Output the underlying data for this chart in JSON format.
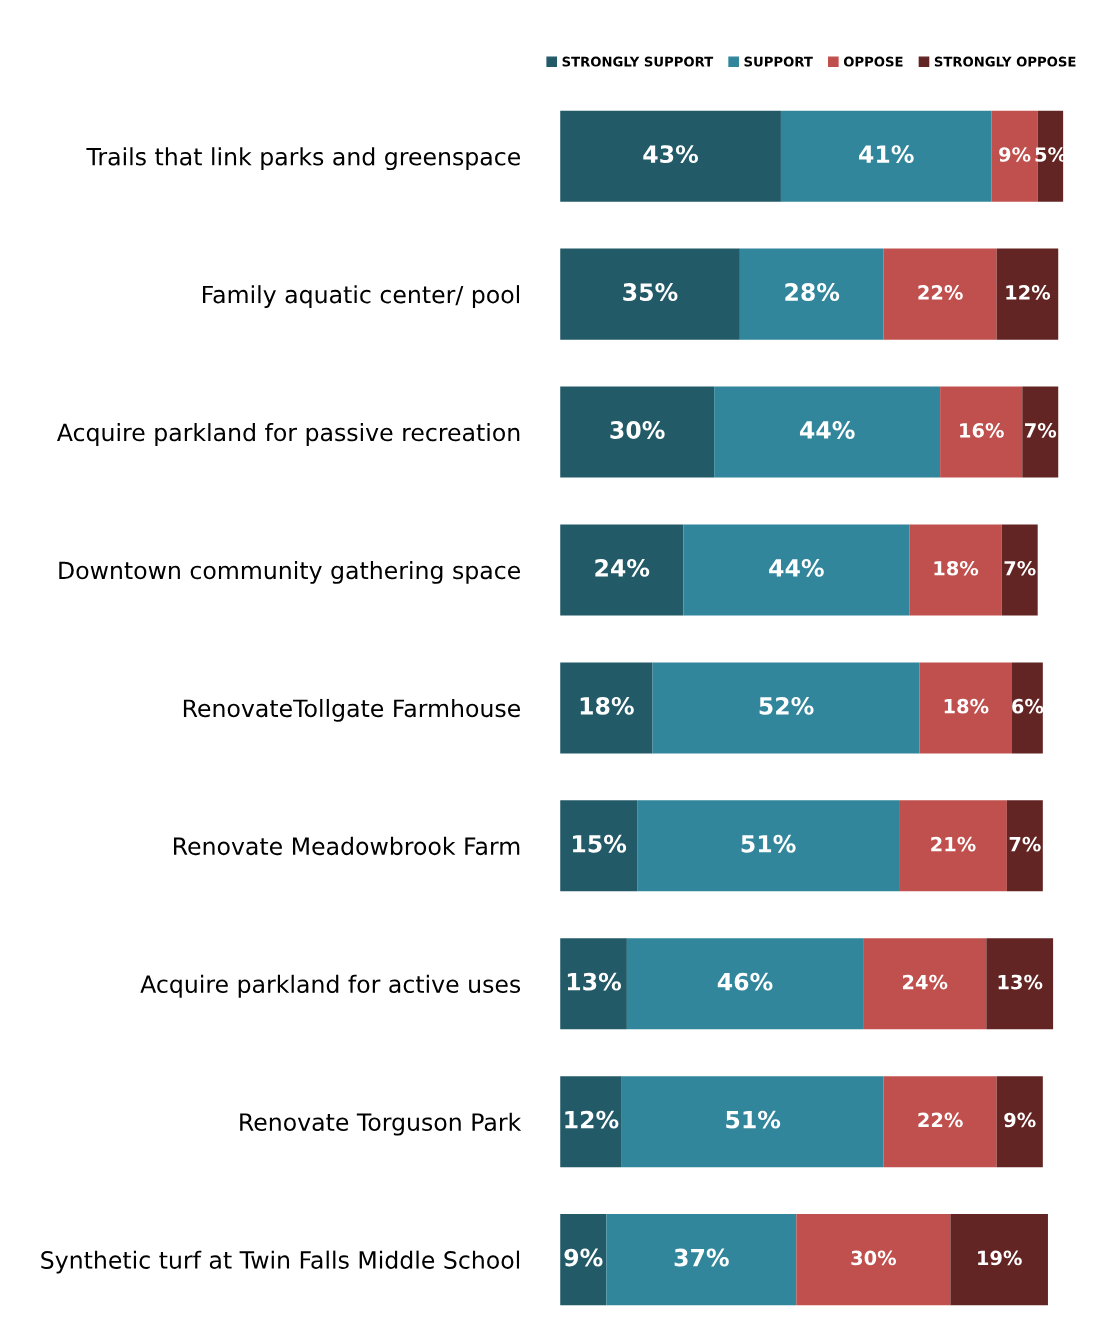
{
  "chart_data": {
    "type": "bar",
    "orientation": "horizontal",
    "stacked": true,
    "legend": "top",
    "grid": false,
    "tick_labels": "y",
    "categories": [
      "Trails that link parks and greenspace",
      "Family aquatic center/ pool",
      "Acquire parkland for passive recreation",
      "Downtown community gathering space",
      "RenovateTollgate Farmhouse",
      "Renovate Meadowbrook Farm",
      "Acquire parkland for active uses",
      "Renovate Torguson Park",
      "Synthetic turf at Twin Falls Middle School"
    ],
    "series": [
      {
        "name": "STRONGLY SUPPORT",
        "color": "#235a68",
        "values": [
          43,
          35,
          30,
          24,
          18,
          15,
          13,
          12,
          9
        ],
        "value_labels": [
          "43%",
          "35%",
          "30%",
          "24%",
          "18%",
          "15%",
          "13%",
          "12%",
          "9%"
        ]
      },
      {
        "name": "SUPPORT",
        "color": "#31869b",
        "values": [
          41,
          28,
          44,
          44,
          52,
          51,
          46,
          51,
          37
        ],
        "value_labels": [
          "41%",
          "28%",
          "44%",
          "44%",
          "52%",
          "51%",
          "46%",
          "51%",
          "37%"
        ]
      },
      {
        "name": "OPPOSE",
        "color": "#c0504d",
        "values": [
          9,
          22,
          16,
          18,
          18,
          21,
          24,
          22,
          30
        ],
        "value_labels": [
          "9%",
          "22%",
          "16%",
          "18%",
          "18%",
          "21%",
          "24%",
          "22%",
          "30%"
        ]
      },
      {
        "name": "STRONGLY OPPOSE",
        "color": "#632523",
        "values": [
          5,
          12,
          7,
          7,
          6,
          7,
          13,
          9,
          19
        ],
        "value_labels": [
          "5%",
          "12%",
          "7%",
          "7%",
          "6%",
          "7%",
          "13%",
          "9%",
          "19%"
        ]
      }
    ]
  }
}
